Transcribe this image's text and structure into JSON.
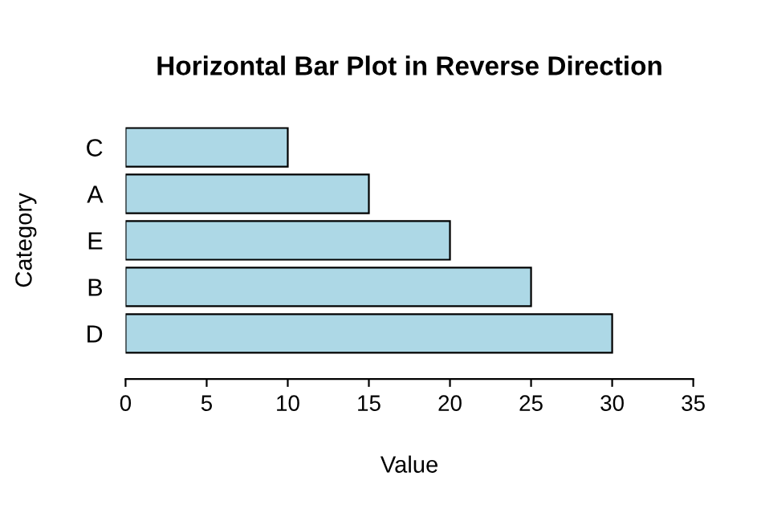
{
  "chart_data": {
    "type": "bar",
    "orientation": "horizontal",
    "title": "Horizontal Bar Plot in Reverse Direction",
    "xlabel": "Value",
    "ylabel": "Category",
    "categories": [
      "C",
      "A",
      "E",
      "B",
      "D"
    ],
    "values": [
      10,
      15,
      20,
      25,
      30
    ],
    "color": "#add8e6",
    "xlim": [
      0,
      35
    ],
    "xticks": [
      0,
      5,
      10,
      15,
      20,
      25,
      30,
      35
    ],
    "grid": false,
    "legend": false
  }
}
